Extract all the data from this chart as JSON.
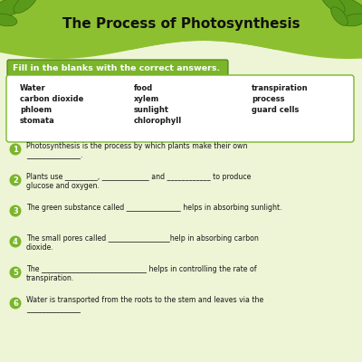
{
  "title": "The Process of Photosynthesis",
  "title_fontsize": 11,
  "title_fontweight": "bold",
  "bg_color": "#eef5d6",
  "header_bg": "#7ab52a",
  "header_text": "Fill in the blanks with the correct answers.",
  "header_fontsize": 6.8,
  "word_bank": [
    [
      "Water",
      "food",
      "transpiration"
    ],
    [
      "carbon dioxide",
      "xylem",
      "process"
    ],
    [
      "phloem",
      "sunlight",
      "guard cells"
    ],
    [
      "stomata",
      "chlorophyll",
      ""
    ]
  ],
  "questions": [
    [
      "Photosynthesis is the process by which plants make their own",
      "_______________."
    ],
    [
      "Plants use _________, _____________ and ____________ to produce",
      "glucose and oxygen."
    ],
    [
      "The green substance called _______________ helps in absorbing sunlight.",
      ""
    ],
    [
      "The small pores called _________________help in absorbing carbon",
      "dioxide."
    ],
    [
      "The _____________________________ helps in controlling the rate of",
      "transpiration."
    ],
    [
      "Water is transported from the roots to the stem and leaves via the",
      "_______________"
    ]
  ],
  "circle_color": "#7ab52a",
  "text_color": "#1a1a1a",
  "word_bank_border": "#5a7a2a",
  "top_bar_color": "#8dc030",
  "wave_color": "#8dc030",
  "wb_bg": "#ffffff",
  "word_fontsize": 6.0,
  "q_fontsize": 5.7
}
